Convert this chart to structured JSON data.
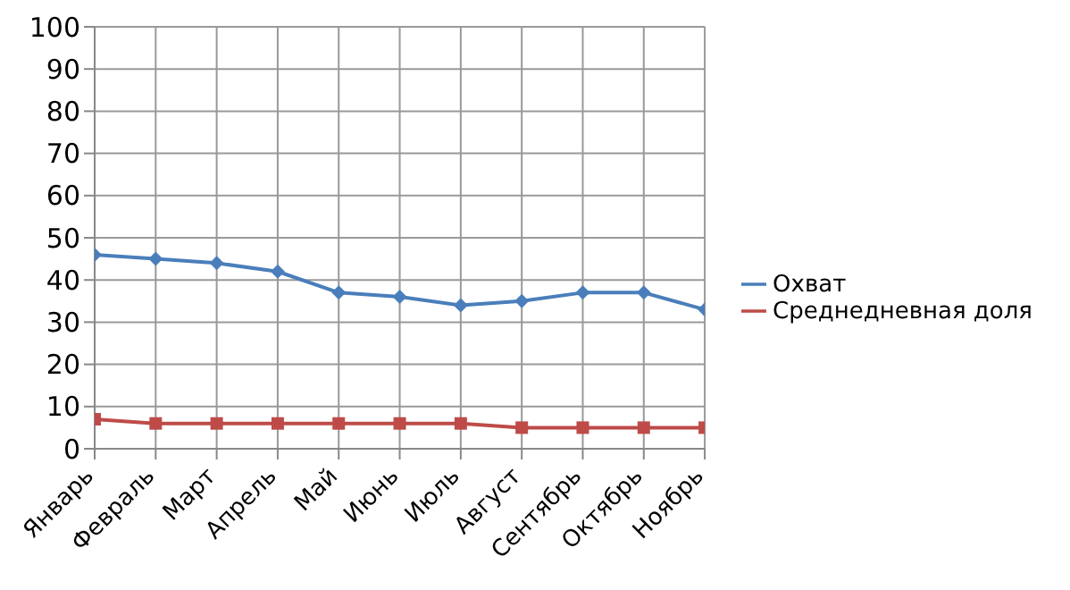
{
  "chart_data": {
    "type": "line",
    "categories": [
      "Январь",
      "Февраль",
      "Март",
      "Апрель",
      "Май",
      "Июнь",
      "Июль",
      "Август",
      "Сентябрь",
      "Октябрь",
      "Ноябрь"
    ],
    "series": [
      {
        "name": "Охват",
        "color": "#4a7ebb",
        "marker": "diamond",
        "values": [
          46,
          45,
          44,
          42,
          37,
          36,
          34,
          35,
          37,
          37,
          33
        ]
      },
      {
        "name": "Среднедневная доля",
        "color": "#be4b48",
        "marker": "square",
        "values": [
          7,
          6,
          6,
          6,
          6,
          6,
          6,
          5,
          5,
          5,
          5
        ]
      }
    ],
    "ylim": [
      0,
      100
    ],
    "yticks": [
      0,
      10,
      20,
      30,
      40,
      50,
      60,
      70,
      80,
      90,
      100
    ],
    "grid": true,
    "legend": "right"
  }
}
